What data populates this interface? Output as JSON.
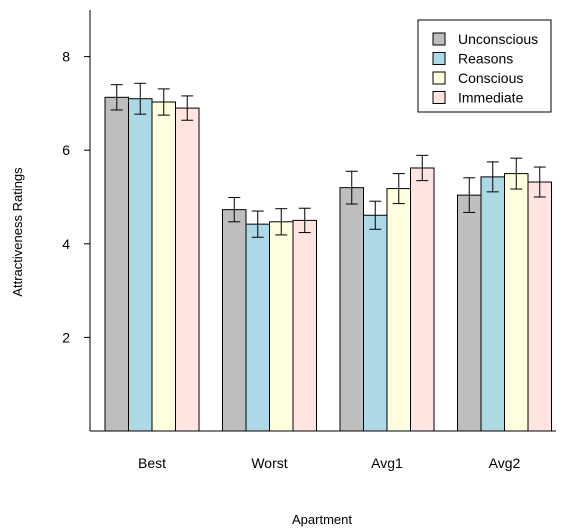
{
  "chart_data": {
    "type": "bar",
    "xlabel": "Apartment",
    "ylabel": "Attractiveness Ratings",
    "ylim": [
      0,
      9
    ],
    "yticks": [
      2,
      4,
      6,
      8
    ],
    "grid": false,
    "legend_position": "top-right",
    "categories": [
      "Best",
      "Worst",
      "Avg1",
      "Avg2"
    ],
    "series": [
      {
        "name": "Unconscious",
        "color": "#bebebe",
        "values": [
          7.13,
          4.73,
          5.2,
          5.04
        ],
        "err": [
          0.27,
          0.26,
          0.35,
          0.37
        ]
      },
      {
        "name": "Reasons",
        "color": "#add8e6",
        "values": [
          7.1,
          4.42,
          4.61,
          5.43
        ],
        "err": [
          0.33,
          0.28,
          0.3,
          0.32
        ]
      },
      {
        "name": "Conscious",
        "color": "#ffffe0",
        "values": [
          7.03,
          4.47,
          5.18,
          5.5
        ],
        "err": [
          0.28,
          0.28,
          0.32,
          0.33
        ]
      },
      {
        "name": "Immediate",
        "color": "#ffe4e1",
        "values": [
          6.9,
          4.5,
          5.62,
          5.32
        ],
        "err": [
          0.26,
          0.26,
          0.27,
          0.32
        ]
      }
    ]
  }
}
